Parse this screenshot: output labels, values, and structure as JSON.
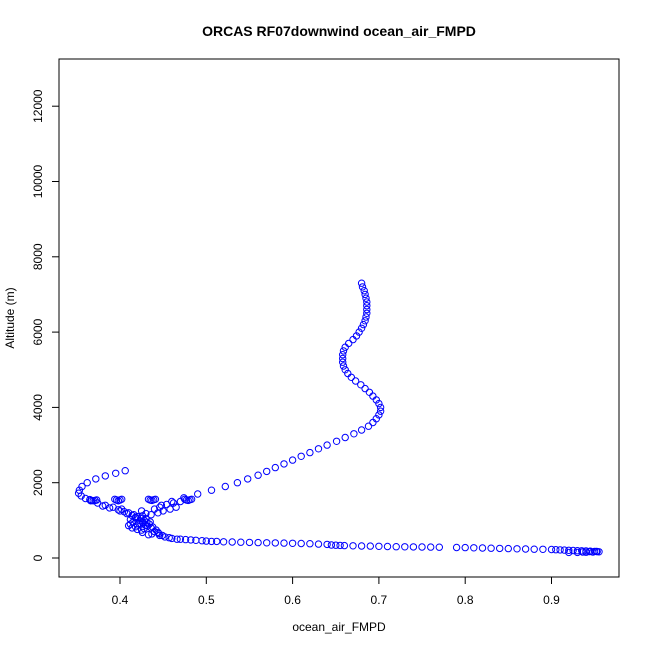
{
  "chart_data": {
    "type": "scatter",
    "title": "ORCAS RF07downwind ocean_air_FMPD",
    "xlabel": "ocean_air_FMPD",
    "ylabel": "Altitude (m)",
    "xlim": [
      0.35,
      0.96
    ],
    "ylim": [
      0,
      13000
    ],
    "x_ticks": [
      0.4,
      0.5,
      0.6,
      0.7,
      0.8,
      0.9
    ],
    "x_tick_labels": [
      "0.4",
      "0.5",
      "0.6",
      "0.7",
      "0.8",
      "0.9"
    ],
    "y_ticks": [
      0,
      2000,
      4000,
      6000,
      8000,
      10000,
      12000
    ],
    "y_tick_labels": [
      "0",
      "2000",
      "4000",
      "6000",
      "8000",
      "10000",
      "12000"
    ],
    "marker": "open-circle",
    "grid": false,
    "series_color": "#0000ff",
    "points": [
      [
        0.68,
        7300
      ],
      [
        0.681,
        7200
      ],
      [
        0.683,
        7100
      ],
      [
        0.684,
        7000
      ],
      [
        0.685,
        6900
      ],
      [
        0.686,
        6800
      ],
      [
        0.686,
        6700
      ],
      [
        0.686,
        6600
      ],
      [
        0.686,
        6500
      ],
      [
        0.685,
        6400
      ],
      [
        0.684,
        6300
      ],
      [
        0.682,
        6200
      ],
      [
        0.68,
        6100
      ],
      [
        0.677,
        6000
      ],
      [
        0.674,
        5900
      ],
      [
        0.67,
        5800
      ],
      [
        0.665,
        5700
      ],
      [
        0.661,
        5600
      ],
      [
        0.659,
        5500
      ],
      [
        0.658,
        5400
      ],
      [
        0.658,
        5300
      ],
      [
        0.658,
        5200
      ],
      [
        0.659,
        5100
      ],
      [
        0.661,
        5000
      ],
      [
        0.664,
        4900
      ],
      [
        0.668,
        4800
      ],
      [
        0.673,
        4700
      ],
      [
        0.679,
        4600
      ],
      [
        0.684,
        4500
      ],
      [
        0.689,
        4400
      ],
      [
        0.693,
        4300
      ],
      [
        0.697,
        4200
      ],
      [
        0.7,
        4100
      ],
      [
        0.702,
        4000
      ],
      [
        0.702,
        3900
      ],
      [
        0.7,
        3800
      ],
      [
        0.697,
        3700
      ],
      [
        0.693,
        3600
      ],
      [
        0.688,
        3500
      ],
      [
        0.68,
        3400
      ],
      [
        0.671,
        3300
      ],
      [
        0.661,
        3200
      ],
      [
        0.651,
        3100
      ],
      [
        0.64,
        3000
      ],
      [
        0.63,
        2900
      ],
      [
        0.62,
        2800
      ],
      [
        0.61,
        2700
      ],
      [
        0.6,
        2600
      ],
      [
        0.59,
        2500
      ],
      [
        0.58,
        2400
      ],
      [
        0.57,
        2300
      ],
      [
        0.56,
        2200
      ],
      [
        0.548,
        2100
      ],
      [
        0.536,
        2000
      ],
      [
        0.522,
        1900
      ],
      [
        0.506,
        1800
      ],
      [
        0.49,
        1700
      ],
      [
        0.474,
        1600
      ],
      [
        0.46,
        1500
      ],
      [
        0.448,
        1400
      ],
      [
        0.44,
        1300
      ],
      [
        0.406,
        2320
      ],
      [
        0.395,
        2250
      ],
      [
        0.383,
        2180
      ],
      [
        0.372,
        2100
      ],
      [
        0.362,
        2000
      ],
      [
        0.356,
        1900
      ],
      [
        0.353,
        1800
      ],
      [
        0.352,
        1720
      ],
      [
        0.355,
        1650
      ],
      [
        0.36,
        1580
      ],
      [
        0.366,
        1520
      ],
      [
        0.374,
        1460
      ],
      [
        0.383,
        1400
      ],
      [
        0.392,
        1350
      ],
      [
        0.402,
        1300
      ],
      [
        0.365,
        1550
      ],
      [
        0.367,
        1530
      ],
      [
        0.369,
        1520
      ],
      [
        0.371,
        1530
      ],
      [
        0.373,
        1540
      ],
      [
        0.394,
        1560
      ],
      [
        0.396,
        1540
      ],
      [
        0.398,
        1520
      ],
      [
        0.4,
        1540
      ],
      [
        0.402,
        1560
      ],
      [
        0.433,
        1560
      ],
      [
        0.435,
        1540
      ],
      [
        0.437,
        1530
      ],
      [
        0.439,
        1545
      ],
      [
        0.441,
        1560
      ],
      [
        0.475,
        1560
      ],
      [
        0.477,
        1540
      ],
      [
        0.479,
        1530
      ],
      [
        0.481,
        1545
      ],
      [
        0.483,
        1560
      ],
      [
        0.4,
        1250
      ],
      [
        0.41,
        1200
      ],
      [
        0.416,
        1150
      ],
      [
        0.42,
        1100
      ],
      [
        0.424,
        1050
      ],
      [
        0.428,
        1000
      ],
      [
        0.431,
        950
      ],
      [
        0.434,
        900
      ],
      [
        0.42,
        880
      ],
      [
        0.415,
        950
      ],
      [
        0.412,
        1020
      ],
      [
        0.418,
        1080
      ],
      [
        0.426,
        1120
      ],
      [
        0.43,
        1180
      ],
      [
        0.425,
        1250
      ],
      [
        0.432,
        850
      ],
      [
        0.438,
        820
      ],
      [
        0.428,
        780
      ],
      [
        0.42,
        760
      ],
      [
        0.414,
        800
      ],
      [
        0.41,
        860
      ],
      [
        0.422,
        920
      ],
      [
        0.435,
        960
      ],
      [
        0.44,
        700
      ],
      [
        0.445,
        650
      ],
      [
        0.433,
        620
      ],
      [
        0.426,
        680
      ],
      [
        0.446,
        600
      ],
      [
        0.452,
        560
      ],
      [
        0.46,
        520
      ],
      [
        0.47,
        500
      ],
      [
        0.482,
        480
      ],
      [
        0.495,
        460
      ],
      [
        0.506,
        440
      ],
      [
        0.52,
        430
      ],
      [
        0.54,
        420
      ],
      [
        0.56,
        410
      ],
      [
        0.58,
        400
      ],
      [
        0.6,
        390
      ],
      [
        0.62,
        380
      ],
      [
        0.64,
        360
      ],
      [
        0.65,
        340
      ],
      [
        0.66,
        330
      ],
      [
        0.68,
        320
      ],
      [
        0.7,
        310
      ],
      [
        0.72,
        300
      ],
      [
        0.74,
        295
      ],
      [
        0.76,
        290
      ],
      [
        0.79,
        280
      ],
      [
        0.81,
        270
      ],
      [
        0.83,
        260
      ],
      [
        0.85,
        250
      ],
      [
        0.87,
        240
      ],
      [
        0.89,
        230
      ],
      [
        0.905,
        220
      ],
      [
        0.915,
        210
      ],
      [
        0.925,
        200
      ],
      [
        0.935,
        190
      ],
      [
        0.945,
        180
      ],
      [
        0.95,
        175
      ],
      [
        0.953,
        170
      ],
      [
        0.955,
        165
      ],
      [
        0.948,
        160
      ],
      [
        0.94,
        155
      ],
      [
        0.93,
        150
      ],
      [
        0.92,
        150
      ],
      [
        0.936,
        160
      ],
      [
        0.944,
        170
      ],
      [
        0.952,
        175
      ],
      [
        0.449,
        600
      ],
      [
        0.457,
        540
      ],
      [
        0.466,
        500
      ],
      [
        0.476,
        490
      ],
      [
        0.488,
        470
      ],
      [
        0.5,
        450
      ],
      [
        0.512,
        440
      ],
      [
        0.53,
        425
      ],
      [
        0.55,
        415
      ],
      [
        0.57,
        405
      ],
      [
        0.59,
        395
      ],
      [
        0.61,
        385
      ],
      [
        0.63,
        370
      ],
      [
        0.645,
        345
      ],
      [
        0.655,
        335
      ],
      [
        0.67,
        325
      ],
      [
        0.69,
        315
      ],
      [
        0.71,
        305
      ],
      [
        0.73,
        298
      ],
      [
        0.75,
        292
      ],
      [
        0.77,
        286
      ],
      [
        0.8,
        275
      ],
      [
        0.82,
        265
      ],
      [
        0.84,
        255
      ],
      [
        0.86,
        245
      ],
      [
        0.88,
        235
      ],
      [
        0.9,
        225
      ],
      [
        0.91,
        215
      ],
      [
        0.92,
        205
      ],
      [
        0.93,
        195
      ],
      [
        0.94,
        185
      ],
      [
        0.38,
        1380
      ],
      [
        0.388,
        1330
      ],
      [
        0.398,
        1280
      ],
      [
        0.405,
        1230
      ],
      [
        0.408,
        1180
      ],
      [
        0.414,
        1130
      ],
      [
        0.418,
        1060
      ],
      [
        0.423,
        990
      ],
      [
        0.427,
        930
      ],
      [
        0.43,
        870
      ],
      [
        0.436,
        800
      ],
      [
        0.442,
        740
      ],
      [
        0.444,
        680
      ],
      [
        0.437,
        640
      ],
      [
        0.425,
        740
      ],
      [
        0.418,
        830
      ],
      [
        0.412,
        900
      ],
      [
        0.446,
        1350
      ],
      [
        0.454,
        1420
      ],
      [
        0.462,
        1460
      ],
      [
        0.47,
        1500
      ],
      [
        0.45,
        1250
      ],
      [
        0.444,
        1200
      ],
      [
        0.436,
        1150
      ],
      [
        0.43,
        1050
      ],
      [
        0.426,
        960
      ],
      [
        0.458,
        1300
      ],
      [
        0.465,
        1350
      ]
    ]
  }
}
